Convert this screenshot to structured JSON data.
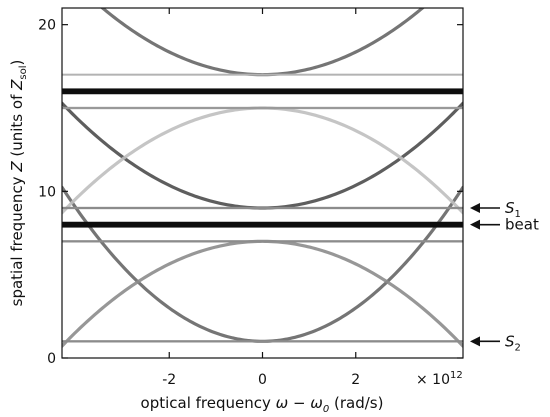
{
  "chart_data": {
    "type": "heatmap",
    "xlabel_prefix": "optical frequency  ",
    "xlabel_symbol": "ω − ω",
    "xlabel_sub": "0",
    "xlabel_units": "  (rad/s)",
    "ylabel_prefix": "spatial frequency ",
    "ylabel_symbol": "Z",
    "ylabel_units_open": " (units of ",
    "ylabel_units_symbol": "Z",
    "ylabel_units_sub": "sol",
    "ylabel_units_close": ")",
    "x_multiplier_base": "× 10",
    "x_multiplier_exp": "12",
    "xlim": [
      -4.3,
      4.3
    ],
    "ylim": [
      0,
      21
    ],
    "x_ticks": [
      {
        "value": -2,
        "label": "-2"
      },
      {
        "value": 0,
        "label": "0"
      },
      {
        "value": 2,
        "label": "2"
      }
    ],
    "y_ticks": [
      {
        "value": 0,
        "label": "0"
      },
      {
        "value": 10,
        "label": "10"
      },
      {
        "value": 20,
        "label": "20"
      }
    ],
    "horizontal_bands": [
      {
        "z": 16.0,
        "darkness": 0.95,
        "width": 0.35
      },
      {
        "z": 8.0,
        "darkness": 0.95,
        "width": 0.35
      },
      {
        "z": 9.0,
        "darkness": 0.45,
        "width": 0.14
      },
      {
        "z": 7.0,
        "darkness": 0.45,
        "width": 0.14
      },
      {
        "z": 15.0,
        "darkness": 0.4,
        "width": 0.14
      },
      {
        "z": 17.0,
        "darkness": 0.3,
        "width": 0.12
      },
      {
        "z": 1.0,
        "darkness": 0.45,
        "width": 0.14
      }
    ],
    "parabolas": [
      {
        "z0": 1.0,
        "curvature": 0.5,
        "direction": 1,
        "darkness": 0.6
      },
      {
        "z0": 7.0,
        "curvature": 0.34,
        "direction": -1,
        "darkness": 0.45
      },
      {
        "z0": 9.0,
        "curvature": 0.34,
        "direction": 1,
        "darkness": 0.7
      },
      {
        "z0": 15.0,
        "curvature": 0.34,
        "direction": -1,
        "darkness": 0.25
      },
      {
        "z0": 17.0,
        "curvature": 0.34,
        "direction": 1,
        "darkness": 0.6
      }
    ],
    "annotations": [
      {
        "z": 9.0,
        "symbol": "S",
        "sub": "1"
      },
      {
        "z": 8.0,
        "text": "beat"
      },
      {
        "z": 1.0,
        "symbol": "S",
        "sub": "2"
      }
    ]
  }
}
